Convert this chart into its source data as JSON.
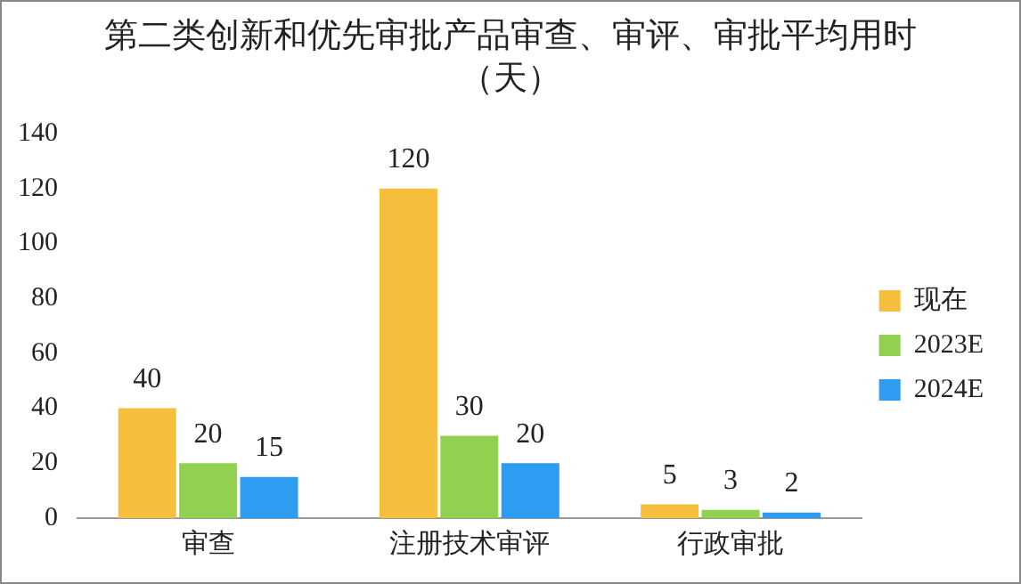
{
  "chart_data": {
    "type": "bar",
    "title": "第二类创新和优先审批产品审查、审评、审批平均用时（天）",
    "categories": [
      "审查",
      "注册技术审评",
      "行政审批"
    ],
    "series": [
      {
        "name": "现在",
        "color": "#f5be3c",
        "values": [
          40,
          120,
          5
        ]
      },
      {
        "name": "2023E",
        "color": "#92d050",
        "values": [
          20,
          30,
          3
        ]
      },
      {
        "name": "2024E",
        "color": "#2e9cf0",
        "values": [
          15,
          20,
          2
        ]
      }
    ],
    "ylim": [
      0,
      140
    ],
    "yticks": [
      0,
      20,
      40,
      60,
      80,
      100,
      120,
      140
    ],
    "grid": false,
    "legend": "right",
    "data_labels": true
  }
}
